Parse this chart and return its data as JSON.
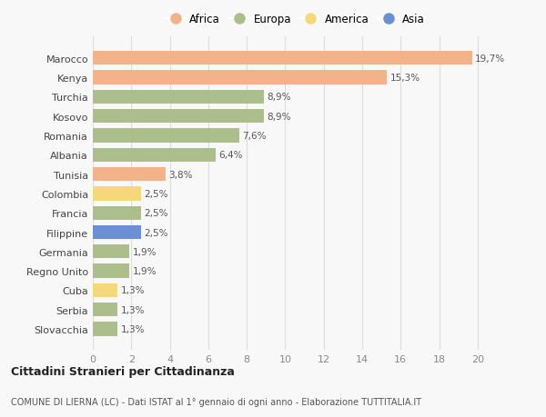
{
  "countries": [
    "Marocco",
    "Kenya",
    "Turchia",
    "Kosovo",
    "Romania",
    "Albania",
    "Tunisia",
    "Colombia",
    "Francia",
    "Filippine",
    "Germania",
    "Regno Unito",
    "Cuba",
    "Serbia",
    "Slovacchia"
  ],
  "values": [
    19.7,
    15.3,
    8.9,
    8.9,
    7.6,
    6.4,
    3.8,
    2.5,
    2.5,
    2.5,
    1.9,
    1.9,
    1.3,
    1.3,
    1.3
  ],
  "labels": [
    "19,7%",
    "15,3%",
    "8,9%",
    "8,9%",
    "7,6%",
    "6,4%",
    "3,8%",
    "2,5%",
    "2,5%",
    "2,5%",
    "1,9%",
    "1,9%",
    "1,3%",
    "1,3%",
    "1,3%"
  ],
  "categories": [
    "Africa",
    "Africa",
    "Europa",
    "Europa",
    "Europa",
    "Europa",
    "Africa",
    "America",
    "Europa",
    "Asia",
    "Europa",
    "Europa",
    "America",
    "Europa",
    "Europa"
  ],
  "colors": {
    "Africa": "#F2B28A",
    "Europa": "#ABBE8B",
    "America": "#F5D87A",
    "Asia": "#6B8FD4"
  },
  "xlim": [
    0,
    21
  ],
  "xticks": [
    0,
    2,
    4,
    6,
    8,
    10,
    12,
    14,
    16,
    18,
    20
  ],
  "title1": "Cittadini Stranieri per Cittadinanza",
  "title2": "COMUNE DI LIERNA (LC) - Dati ISTAT al 1° gennaio di ogni anno - Elaborazione TUTTITALIA.IT",
  "background_color": "#F8F8F8",
  "grid_color": "#DDDDDD",
  "bar_height": 0.72,
  "legend_order": [
    "Africa",
    "Europa",
    "America",
    "Asia"
  ]
}
